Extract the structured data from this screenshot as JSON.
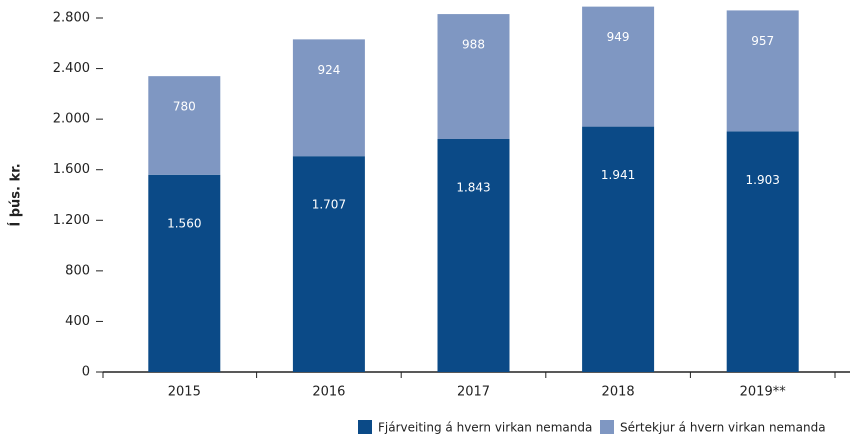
{
  "chart_data": {
    "type": "stacked_bar",
    "y_label": "Í þús. kr.",
    "categories": [
      "2015",
      "2016",
      "2017",
      "2018",
      "2019**"
    ],
    "series": [
      {
        "name": "Fjárveiting á hvern virkan nemanda",
        "color": "#0b4a87",
        "values": [
          1560,
          1707,
          1843,
          1941,
          1903
        ],
        "value_labels": [
          "1.560",
          "1.707",
          "1.843",
          "1.941",
          "1.903"
        ]
      },
      {
        "name": "Sértekjur á hvern virkan nemanda",
        "color": "#7f97c2",
        "values": [
          780,
          924,
          988,
          949,
          957
        ],
        "value_labels": [
          "780",
          "924",
          "988",
          "949",
          "957"
        ]
      }
    ],
    "ylim": [
      0,
      2800
    ],
    "yticks": [
      0,
      400,
      800,
      {
        "value": 1200,
        "label": "1.200"
      },
      {
        "value": 1600,
        "label": "1.600"
      },
      {
        "value": 2000,
        "label": "2.000"
      },
      {
        "value": 2400,
        "label": "2.400"
      },
      {
        "value": 2800,
        "label": "2.800"
      }
    ],
    "grid": false,
    "legend": "bottom-right"
  }
}
